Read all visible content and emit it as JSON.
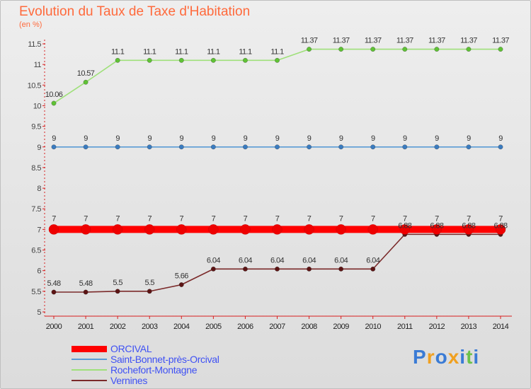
{
  "chart_data": {
    "type": "line",
    "title": "Evolution du Taux de Taxe d'Habitation",
    "unit_label": "(en %)",
    "x": [
      2000,
      2001,
      2002,
      2003,
      2004,
      2005,
      2006,
      2007,
      2008,
      2009,
      2010,
      2011,
      2012,
      2013,
      2014
    ],
    "x_tick_labels": [
      "2000",
      "2001",
      "2002",
      "2003",
      "2004",
      "2005",
      "2006",
      "2007",
      "2008",
      "2009",
      "2010",
      "2011",
      "2012",
      "2013",
      "2014"
    ],
    "ylim": [
      5,
      11.5
    ],
    "y_ticks": [
      5,
      5.5,
      6,
      6.5,
      7,
      7.5,
      8,
      8.5,
      9,
      9.5,
      10,
      10.5,
      11,
      11.5
    ],
    "y_tick_labels": [
      "5",
      "5.5",
      "6",
      "6.5",
      "7",
      "7.5",
      "8",
      "8.5",
      "9",
      "9.5",
      "10",
      "10.5",
      "11",
      "11.5"
    ],
    "grid": false,
    "legend_position": "bottom-left",
    "series": [
      {
        "name": "Vernines",
        "color": "#7b2a2a",
        "marker_color": "#5c1414",
        "values": [
          5.48,
          5.48,
          5.5,
          5.5,
          5.66,
          6.04,
          6.04,
          6.04,
          6.04,
          6.04,
          6.04,
          6.88,
          6.88,
          6.88,
          6.88
        ],
        "value_labels": [
          "5.48",
          "5.48",
          "5.5",
          "5.5",
          "5.66",
          "6.04",
          "6.04",
          "6.04",
          "6.04",
          "6.04",
          "6.04",
          "6.88",
          "6.88",
          "6.88",
          "6.88"
        ]
      },
      {
        "name": "Saint-Bonnet-près-Orcival",
        "color": "#5a9bd5",
        "marker_color": "#3a7bbf",
        "values": [
          9,
          9,
          9,
          9,
          9,
          9,
          9,
          9,
          9,
          9,
          9,
          9,
          9,
          9,
          9
        ],
        "value_labels": [
          "9",
          "9",
          "9",
          "9",
          "9",
          "9",
          "9",
          "9",
          "9",
          "9",
          "9",
          "9",
          "9",
          "9",
          "9"
        ]
      },
      {
        "name": "Rochefort-Montagne",
        "color": "#9fe07a",
        "marker_color": "#5fc235",
        "values": [
          10.06,
          10.57,
          11.1,
          11.1,
          11.1,
          11.1,
          11.1,
          11.1,
          11.37,
          11.37,
          11.37,
          11.37,
          11.37,
          11.37,
          11.37
        ],
        "value_labels": [
          "10.06",
          "10.57",
          "11.1",
          "11.1",
          "11.1",
          "11.1",
          "11.1",
          "11.1",
          "11.37",
          "11.37",
          "11.37",
          "11.37",
          "11.37",
          "11.37",
          "11.37"
        ]
      },
      {
        "name": "ORCIVAL",
        "color": "#ff0000",
        "marker_color": "#ee0000",
        "highlighted": true,
        "values": [
          7,
          7,
          7,
          7,
          7,
          7,
          7,
          7,
          7,
          7,
          7,
          7,
          7,
          7,
          7
        ],
        "value_labels": [
          "7",
          "7",
          "7",
          "7",
          "7",
          "7",
          "7",
          "7",
          "7",
          "7",
          "7",
          "7",
          "7",
          "7",
          "7"
        ]
      }
    ],
    "legend_order": [
      "ORCIVAL",
      "Saint-Bonnet-près-Orcival",
      "Rochefort-Montagne",
      "Vernines"
    ]
  },
  "brand": {
    "text": "Proxiti",
    "colors": [
      "#3a7bd5",
      "#f0a020",
      "#3a7bd5",
      "#f0a020",
      "#3a7bd5",
      "#6cc24a",
      "#3a7bd5"
    ]
  }
}
